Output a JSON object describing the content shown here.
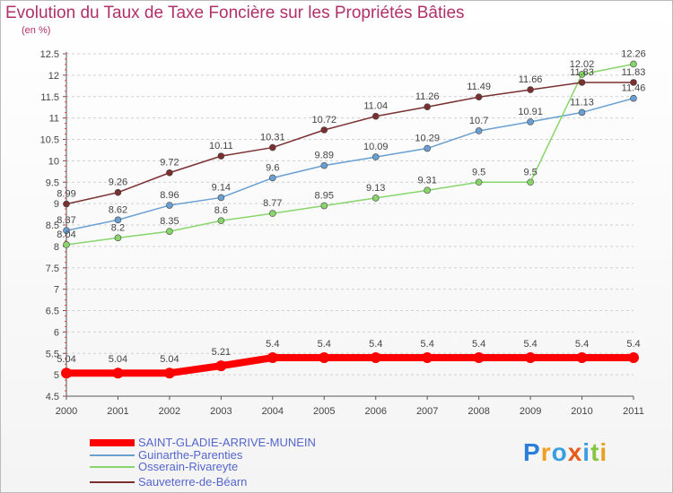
{
  "title": "Evolution du Taux de Taxe Foncière sur les Propriétés Bâties",
  "unit": "(en %)",
  "logo": "Proxiti",
  "chart_data": {
    "type": "line",
    "title": "Evolution du Taux de Taxe Foncière sur les Propriétés Bâties",
    "ylabel": "(en %)",
    "xlabel": "",
    "ylim": [
      4.5,
      12.5
    ],
    "yticks": [
      "4.5",
      "5",
      "5.5",
      "6",
      "6.5",
      "7",
      "7.5",
      "8",
      "8.5",
      "9",
      "9.5",
      "10",
      "10.5",
      "11",
      "11.5",
      "12",
      "12.5"
    ],
    "categories": [
      "2000",
      "2001",
      "2002",
      "2003",
      "2004",
      "2005",
      "2006",
      "2007",
      "2008",
      "2009",
      "2010",
      "2011"
    ],
    "series": [
      {
        "name": "SAINT-GLADIE-ARRIVE-MUNEIN",
        "color": "#ff0000",
        "values": [
          5.04,
          5.04,
          5.04,
          5.21,
          5.4,
          5.4,
          5.4,
          5.4,
          5.4,
          5.4,
          5.4,
          5.4
        ],
        "labels": [
          "5.04",
          "5.04",
          "5.04",
          "5.21",
          "5.4",
          "5.4",
          "5.4",
          "5.4",
          "5.4",
          "5.4",
          "5.4",
          "5.4"
        ]
      },
      {
        "name": "Guinarthe-Parenties",
        "color": "#6a9fd1",
        "values": [
          8.37,
          8.62,
          8.96,
          9.14,
          9.6,
          9.89,
          10.09,
          10.29,
          10.7,
          10.91,
          11.13,
          11.46
        ],
        "labels": [
          "8.37",
          "8.62",
          "8.96",
          "9.14",
          "9.6",
          "9.89",
          "10.09",
          "10.29",
          "10.7",
          "10.91",
          "11.13",
          "11.46"
        ]
      },
      {
        "name": "Osserain-Rivareyte",
        "color": "#88d66b",
        "values": [
          8.04,
          8.2,
          8.35,
          8.6,
          8.77,
          8.95,
          9.13,
          9.31,
          9.5,
          9.5,
          12.02,
          12.26
        ],
        "labels": [
          "8.04",
          "8.2",
          "8.35",
          "8.6",
          "8.77",
          "8.95",
          "9.13",
          "9.31",
          "9.5",
          "9.5",
          "12.02",
          "12.26"
        ]
      },
      {
        "name": "Sauveterre-de-Béarn",
        "color": "#7a3030",
        "values": [
          8.99,
          9.26,
          9.72,
          10.11,
          10.31,
          10.72,
          11.04,
          11.26,
          11.49,
          11.66,
          11.83,
          11.83
        ],
        "labels": [
          "8.99",
          "9.26",
          "9.72",
          "10.11",
          "10.31",
          "10.72",
          "11.04",
          "11.26",
          "11.49",
          "11.66",
          "11.83",
          "11.83"
        ]
      }
    ],
    "legend_position": "bottom-left"
  }
}
